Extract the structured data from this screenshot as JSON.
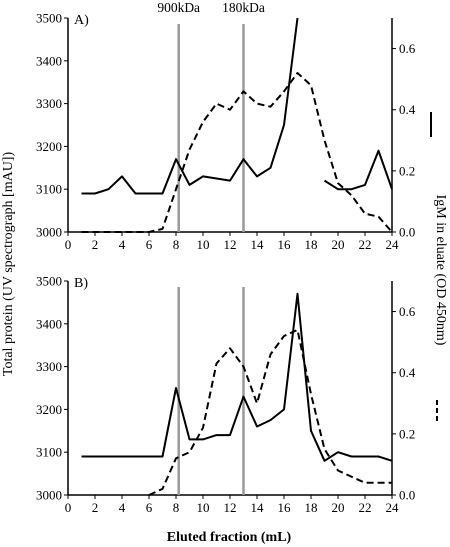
{
  "chart_data": [
    {
      "type": "line",
      "panel_label": "A)",
      "markers": [
        {
          "label": "900kDa",
          "x": 8.2
        },
        {
          "label": "180kDa",
          "x": 13
        }
      ],
      "x_ticks": [
        "0",
        "2",
        "4",
        "6",
        "8",
        "10",
        "12",
        "14",
        "16",
        "18",
        "20",
        "22",
        "24"
      ],
      "xlim": [
        0,
        24
      ],
      "y_left_ticks": [
        "3000",
        "3100",
        "3200",
        "3300",
        "3400",
        "3500"
      ],
      "ylim_left": [
        3000,
        3500
      ],
      "y_right_ticks": [
        "0.0",
        "0.2",
        "0.4",
        "0.6"
      ],
      "ylim_right": [
        0,
        0.7
      ],
      "series": [
        {
          "axis": "left",
          "style": "solid",
          "segments": [
            [
              [
                1,
                3090
              ],
              [
                2,
                3090
              ],
              [
                3,
                3100
              ],
              [
                4,
                3130
              ],
              [
                5,
                3090
              ],
              [
                6,
                3090
              ],
              [
                7,
                3090
              ],
              [
                8,
                3170
              ],
              [
                9,
                3110
              ],
              [
                10,
                3130
              ],
              [
                11,
                3125
              ],
              [
                12,
                3120
              ],
              [
                13,
                3170
              ],
              [
                14,
                3130
              ],
              [
                15,
                3150
              ],
              [
                16,
                3250
              ],
              [
                17,
                3500
              ]
            ],
            [
              [
                19,
                3120
              ],
              [
                20,
                3100
              ],
              [
                21,
                3100
              ],
              [
                22,
                3110
              ],
              [
                23,
                3190
              ],
              [
                24,
                3100
              ]
            ]
          ]
        },
        {
          "axis": "right",
          "style": "dashed",
          "segments": [
            [
              [
                1,
                0
              ],
              [
                2,
                0
              ],
              [
                3,
                0
              ],
              [
                4,
                0
              ],
              [
                5,
                0
              ],
              [
                6,
                0
              ],
              [
                7,
                0.01
              ],
              [
                8,
                0.14
              ],
              [
                9,
                0.27
              ],
              [
                10,
                0.36
              ],
              [
                11,
                0.42
              ],
              [
                12,
                0.4
              ],
              [
                13,
                0.46
              ],
              [
                14,
                0.42
              ],
              [
                15,
                0.41
              ],
              [
                16,
                0.46
              ],
              [
                17,
                0.52
              ],
              [
                18,
                0.48
              ],
              [
                19,
                0.3
              ],
              [
                20,
                0.16
              ],
              [
                21,
                0.12
              ],
              [
                22,
                0.06
              ],
              [
                23,
                0.05
              ],
              [
                24,
                0
              ]
            ]
          ]
        }
      ]
    },
    {
      "type": "line",
      "panel_label": "B)",
      "markers": [
        {
          "label": "",
          "x": 8.2
        },
        {
          "label": "",
          "x": 13
        }
      ],
      "x_ticks": [
        "0",
        "2",
        "4",
        "6",
        "8",
        "10",
        "12",
        "14",
        "16",
        "18",
        "20",
        "22",
        "24"
      ],
      "xlim": [
        0,
        24
      ],
      "y_left_ticks": [
        "3000",
        "3100",
        "3200",
        "3300",
        "3400",
        "3500"
      ],
      "ylim_left": [
        3000,
        3500
      ],
      "y_right_ticks": [
        "0.0",
        "0.2",
        "0.4",
        "0.6"
      ],
      "ylim_right": [
        0,
        0.7
      ],
      "series": [
        {
          "axis": "left",
          "style": "solid",
          "segments": [
            [
              [
                1,
                3090
              ],
              [
                2,
                3090
              ],
              [
                3,
                3090
              ],
              [
                4,
                3090
              ],
              [
                5,
                3090
              ],
              [
                6,
                3090
              ],
              [
                7,
                3090
              ],
              [
                8,
                3250
              ],
              [
                9,
                3130
              ],
              [
                10,
                3130
              ],
              [
                11,
                3140
              ],
              [
                12,
                3140
              ],
              [
                13,
                3230
              ],
              [
                14,
                3160
              ],
              [
                15,
                3175
              ],
              [
                16,
                3200
              ],
              [
                17,
                3470
              ],
              [
                18,
                3150
              ],
              [
                19,
                3080
              ],
              [
                20,
                3100
              ],
              [
                21,
                3090
              ],
              [
                22,
                3090
              ],
              [
                23,
                3090
              ],
              [
                24,
                3080
              ]
            ]
          ]
        },
        {
          "axis": "right",
          "style": "dashed",
          "segments": [
            [
              [
                6,
                0
              ],
              [
                7,
                0.02
              ],
              [
                8,
                0.12
              ],
              [
                9,
                0.14
              ],
              [
                10,
                0.22
              ],
              [
                11,
                0.43
              ],
              [
                12,
                0.48
              ],
              [
                13,
                0.42
              ],
              [
                14,
                0.3
              ],
              [
                15,
                0.46
              ],
              [
                16,
                0.52
              ],
              [
                17,
                0.54
              ],
              [
                18,
                0.33
              ],
              [
                19,
                0.15
              ],
              [
                20,
                0.08
              ],
              [
                21,
                0.06
              ],
              [
                22,
                0.04
              ],
              [
                23,
                0.04
              ],
              [
                24,
                0.04
              ]
            ]
          ]
        }
      ]
    }
  ],
  "labels": {
    "xlabel": "Eluted fraction (mL)",
    "ylabel_left": "Total protein (UV spectrograph [mAU])",
    "ylabel_right": "IgM in eluate (OD 450nm)"
  },
  "colors": {
    "line": "#000000",
    "marker_line": "#9a9a9a"
  }
}
